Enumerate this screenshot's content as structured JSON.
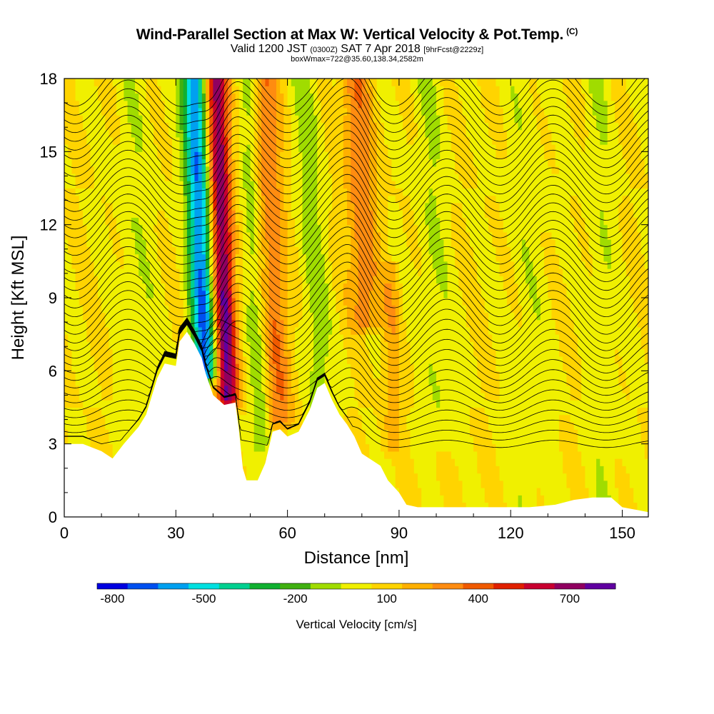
{
  "header": {
    "title": "Wind-Parallel Section at Max W: Vertical Velocity & Pot.Temp.",
    "copyright": "(C)",
    "valid_prefix": "Valid 1200 JST",
    "valid_utc": "(0300Z)",
    "valid_date": "SAT 7 Apr 2018",
    "forecast_info": "[9hrFcst@2229z]",
    "box_info": "boxWmax=722@35.60,138.34,2582m"
  },
  "chart_data": {
    "type": "heatmap",
    "xlabel": "Distance [nm]",
    "ylabel": "Height [Kft MSL]",
    "xlim": [
      0,
      157
    ],
    "ylim": [
      0,
      18
    ],
    "x_ticks": [
      0,
      30,
      60,
      90,
      120,
      150
    ],
    "y_ticks": [
      0,
      3,
      6,
      9,
      12,
      15,
      18
    ],
    "colorbar": {
      "title": "Vertical Velocity [cm/s]",
      "labels": [
        "-800",
        "-500",
        "-200",
        "100",
        "400",
        "700"
      ],
      "label_values": [
        -800,
        -500,
        -200,
        100,
        400,
        700
      ],
      "range": [
        -850,
        850
      ],
      "colors": [
        "#0000e0",
        "#0050f0",
        "#00a0f0",
        "#00e0e0",
        "#00d090",
        "#10b030",
        "#40b010",
        "#a0dc00",
        "#f0f000",
        "#ffd400",
        "#ffb000",
        "#ff8c10",
        "#f05a00",
        "#e02000",
        "#c80030",
        "#900060",
        "#6000a0"
      ]
    },
    "background_w": 50,
    "w_features": [
      {
        "x": 37,
        "w": -720,
        "width": 3.2,
        "tilt": 0.26,
        "zmin": 5.9,
        "zmax": 18
      },
      {
        "x": 43,
        "w": 722,
        "width": 3.0,
        "tilt": 0.24,
        "zmin": 4.8,
        "zmax": 18
      },
      {
        "x": 52,
        "w": -170,
        "width": 2.5,
        "tilt": 0.3,
        "zmin": 3,
        "zmax": 18
      },
      {
        "x": 57,
        "w": 300,
        "width": 3.5,
        "tilt": 0.32,
        "zmin": 4,
        "zmax": 18
      },
      {
        "x": 68,
        "w": -150,
        "width": 3.5,
        "tilt": 0.3,
        "zmin": 3,
        "zmax": 18
      },
      {
        "x": 80,
        "w": 280,
        "width": 4,
        "tilt": 0.3,
        "zmin": 8,
        "zmax": 18
      },
      {
        "x": 88,
        "w": 150,
        "width": 2.5,
        "tilt": 0.05,
        "zmin": 3,
        "zmax": 10
      },
      {
        "x": 100,
        "w": -100,
        "width": 4,
        "tilt": 0.2,
        "zmin": 3,
        "zmax": 18
      },
      {
        "x": 20,
        "w": -80,
        "width": 5,
        "tilt": 0.1,
        "zmin": 0,
        "zmax": 18
      },
      {
        "x": 125,
        "w": -60,
        "width": 6,
        "tilt": 0.1,
        "zmin": 0,
        "zmax": 18
      },
      {
        "x": 145,
        "w": -80,
        "width": 4,
        "tilt": 0.1,
        "zmin": 0,
        "zmax": 18
      }
    ],
    "terrain_height": [
      [
        0,
        3.0
      ],
      [
        5,
        3.0
      ],
      [
        10,
        2.7
      ],
      [
        13,
        2.4
      ],
      [
        16,
        3.0
      ],
      [
        20,
        3.7
      ],
      [
        22,
        4.2
      ],
      [
        25,
        5.7
      ],
      [
        27,
        6.3
      ],
      [
        30,
        6.2
      ],
      [
        31,
        7.2
      ],
      [
        33,
        7.6
      ],
      [
        35,
        7.1
      ],
      [
        37,
        6.5
      ],
      [
        38,
        5.9
      ],
      [
        40,
        5.0
      ],
      [
        43,
        4.6
      ],
      [
        46,
        4.7
      ],
      [
        47,
        3.5
      ],
      [
        48,
        2.0
      ],
      [
        49,
        1.5
      ],
      [
        52,
        1.5
      ],
      [
        54,
        2.2
      ],
      [
        56,
        3.5
      ],
      [
        58,
        3.6
      ],
      [
        60,
        3.3
      ],
      [
        63,
        3.5
      ],
      [
        66,
        4.4
      ],
      [
        68,
        5.3
      ],
      [
        70,
        5.5
      ],
      [
        72,
        4.8
      ],
      [
        74,
        4.2
      ],
      [
        76,
        3.8
      ],
      [
        78,
        3.3
      ],
      [
        80,
        2.6
      ],
      [
        83,
        2.3
      ],
      [
        85,
        2.1
      ],
      [
        87,
        1.5
      ],
      [
        90,
        1.0
      ],
      [
        92,
        0.5
      ],
      [
        95,
        0.4
      ],
      [
        100,
        0.4
      ],
      [
        115,
        0.4
      ],
      [
        125,
        0.4
      ],
      [
        132,
        0.5
      ],
      [
        137,
        0.7
      ],
      [
        142,
        0.8
      ],
      [
        147,
        0.8
      ],
      [
        150,
        0.4
      ],
      [
        157,
        0.2
      ]
    ],
    "theta_contours": {
      "count": 42,
      "base_height": 3.0,
      "spacing": 0.36,
      "wave_amplitude": 0.9
    }
  }
}
